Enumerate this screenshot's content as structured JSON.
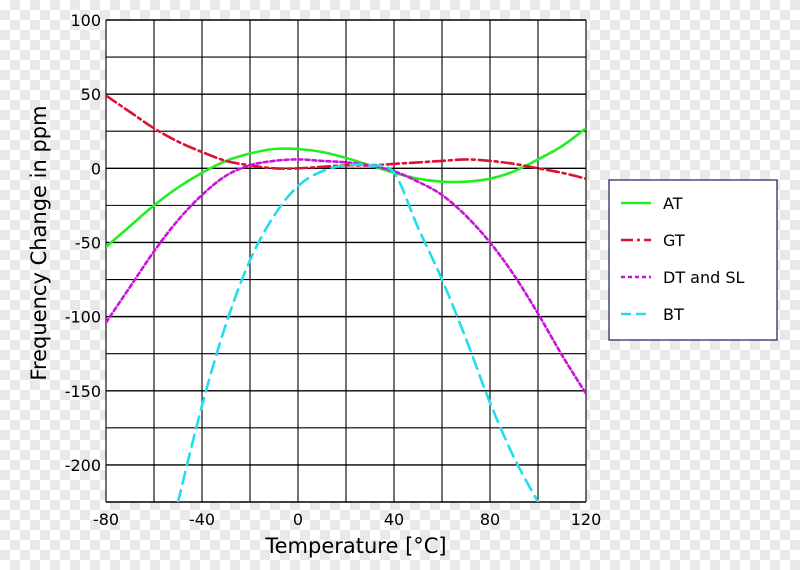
{
  "chart_data": {
    "type": "line",
    "title": "",
    "xlabel": "Temperature [°C]",
    "ylabel": "Frequency Change in ppm",
    "xlim": [
      -80,
      120
    ],
    "ylim": [
      -225,
      100
    ],
    "xticks": [
      -80,
      -40,
      0,
      40,
      80,
      120
    ],
    "yticks": [
      100,
      50,
      0,
      -50,
      -100,
      -150,
      -200
    ],
    "grid": true,
    "legend_position": "right",
    "series": [
      {
        "name": "AT",
        "color": "#22ee22",
        "style": "solid",
        "points": [
          [
            -80,
            -53
          ],
          [
            -70,
            -39
          ],
          [
            -60,
            -25
          ],
          [
            -50,
            -13
          ],
          [
            -40,
            -3
          ],
          [
            -30,
            5
          ],
          [
            -20,
            10
          ],
          [
            -10,
            13
          ],
          [
            0,
            13
          ],
          [
            10,
            11
          ],
          [
            20,
            7
          ],
          [
            30,
            2
          ],
          [
            40,
            -3
          ],
          [
            50,
            -7
          ],
          [
            60,
            -9
          ],
          [
            70,
            -9
          ],
          [
            80,
            -7
          ],
          [
            90,
            -2
          ],
          [
            100,
            6
          ],
          [
            110,
            15
          ],
          [
            120,
            27
          ]
        ]
      },
      {
        "name": "GT",
        "color": "#dd1133",
        "style": "dash-dot",
        "points": [
          [
            -80,
            49
          ],
          [
            -70,
            38
          ],
          [
            -60,
            27
          ],
          [
            -50,
            18
          ],
          [
            -40,
            11
          ],
          [
            -30,
            5
          ],
          [
            -20,
            2
          ],
          [
            -10,
            0
          ],
          [
            0,
            0
          ],
          [
            10,
            1
          ],
          [
            20,
            2
          ],
          [
            30,
            2
          ],
          [
            40,
            3
          ],
          [
            50,
            4
          ],
          [
            60,
            5
          ],
          [
            70,
            6
          ],
          [
            80,
            5
          ],
          [
            90,
            3
          ],
          [
            100,
            0
          ],
          [
            110,
            -3
          ],
          [
            120,
            -7
          ]
        ]
      },
      {
        "name": "DT and SL",
        "color": "#cc11dd",
        "style": "dotted",
        "points": [
          [
            -80,
            -104
          ],
          [
            -70,
            -80
          ],
          [
            -60,
            -56
          ],
          [
            -50,
            -35
          ],
          [
            -40,
            -18
          ],
          [
            -30,
            -5
          ],
          [
            -20,
            2
          ],
          [
            -10,
            5
          ],
          [
            0,
            6
          ],
          [
            10,
            5
          ],
          [
            20,
            4
          ],
          [
            30,
            2
          ],
          [
            40,
            -2
          ],
          [
            50,
            -9
          ],
          [
            60,
            -18
          ],
          [
            70,
            -32
          ],
          [
            80,
            -50
          ],
          [
            90,
            -72
          ],
          [
            100,
            -98
          ],
          [
            110,
            -126
          ],
          [
            120,
            -152
          ]
        ]
      },
      {
        "name": "BT",
        "color": "#22ddee",
        "style": "dashed",
        "points": [
          [
            -50,
            -225
          ],
          [
            -40,
            -160
          ],
          [
            -30,
            -105
          ],
          [
            -20,
            -62
          ],
          [
            -10,
            -32
          ],
          [
            0,
            -12
          ],
          [
            10,
            -2
          ],
          [
            20,
            2
          ],
          [
            30,
            2
          ],
          [
            40,
            -3
          ],
          [
            50,
            -40
          ],
          [
            60,
            -75
          ],
          [
            70,
            -115
          ],
          [
            80,
            -158
          ],
          [
            90,
            -195
          ],
          [
            100,
            -225
          ]
        ]
      }
    ]
  }
}
